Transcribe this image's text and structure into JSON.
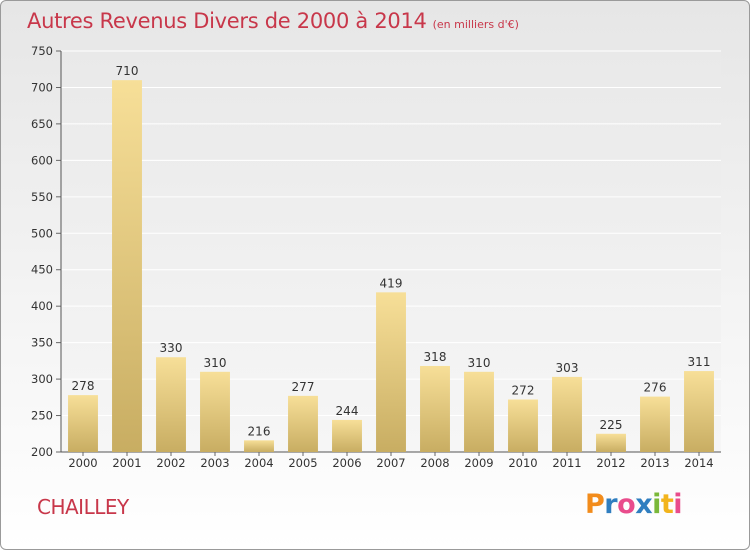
{
  "title": "Autres Revenus Divers de 2000 à 2014",
  "subtitle": "(en milliers d'€)",
  "place": "CHAILLEY",
  "logo": {
    "letters": [
      "P",
      "r",
      "o",
      "x",
      "i",
      "t",
      "i"
    ],
    "colors": [
      "#f28c1c",
      "#2f7ec0",
      "#e94c8c",
      "#2f7ec0",
      "#7ab83a",
      "#f2b41c",
      "#e94c8c"
    ]
  },
  "chart_data": {
    "type": "bar",
    "categories": [
      "2000",
      "2001",
      "2002",
      "2003",
      "2004",
      "2005",
      "2006",
      "2007",
      "2008",
      "2009",
      "2010",
      "2011",
      "2012",
      "2013",
      "2014"
    ],
    "values": [
      278,
      710,
      330,
      310,
      216,
      277,
      244,
      419,
      318,
      310,
      272,
      303,
      225,
      276,
      311
    ],
    "ylim": [
      200,
      750
    ],
    "yticks": [
      200,
      250,
      300,
      350,
      400,
      450,
      500,
      550,
      600,
      650,
      700,
      750
    ],
    "grid": true,
    "bar_color_light": "#f7df98",
    "bar_color_dark": "#c8ad62"
  }
}
